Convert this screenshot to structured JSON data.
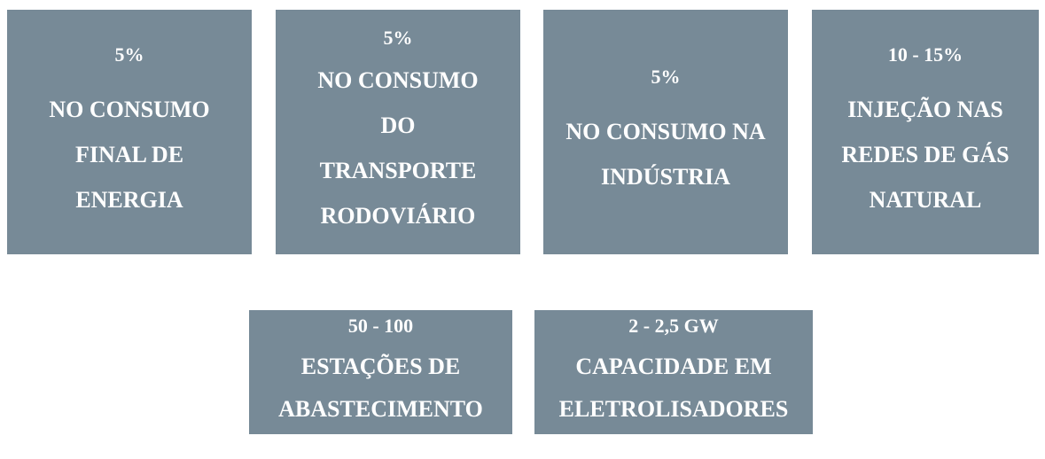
{
  "tiles": [
    {
      "value": "5%",
      "label": "NO CONSUMO FINAL DE ENERGIA"
    },
    {
      "value": "5%",
      "label": "NO CONSUMO DO TRANSPORTE RODOVIÁRIO"
    },
    {
      "value": "5%",
      "label": "NO CONSUMO NA INDÚSTRIA"
    },
    {
      "value": "10 - 15%",
      "label": "INJEÇÃO NAS REDES DE GÁS NATURAL"
    },
    {
      "value": "50 - 100",
      "label": "ESTAÇÕES DE ABASTECIMENTO"
    },
    {
      "value": "2 - 2,5 GW",
      "label": "CAPACIDADE EM ELETROLISADORES"
    }
  ]
}
